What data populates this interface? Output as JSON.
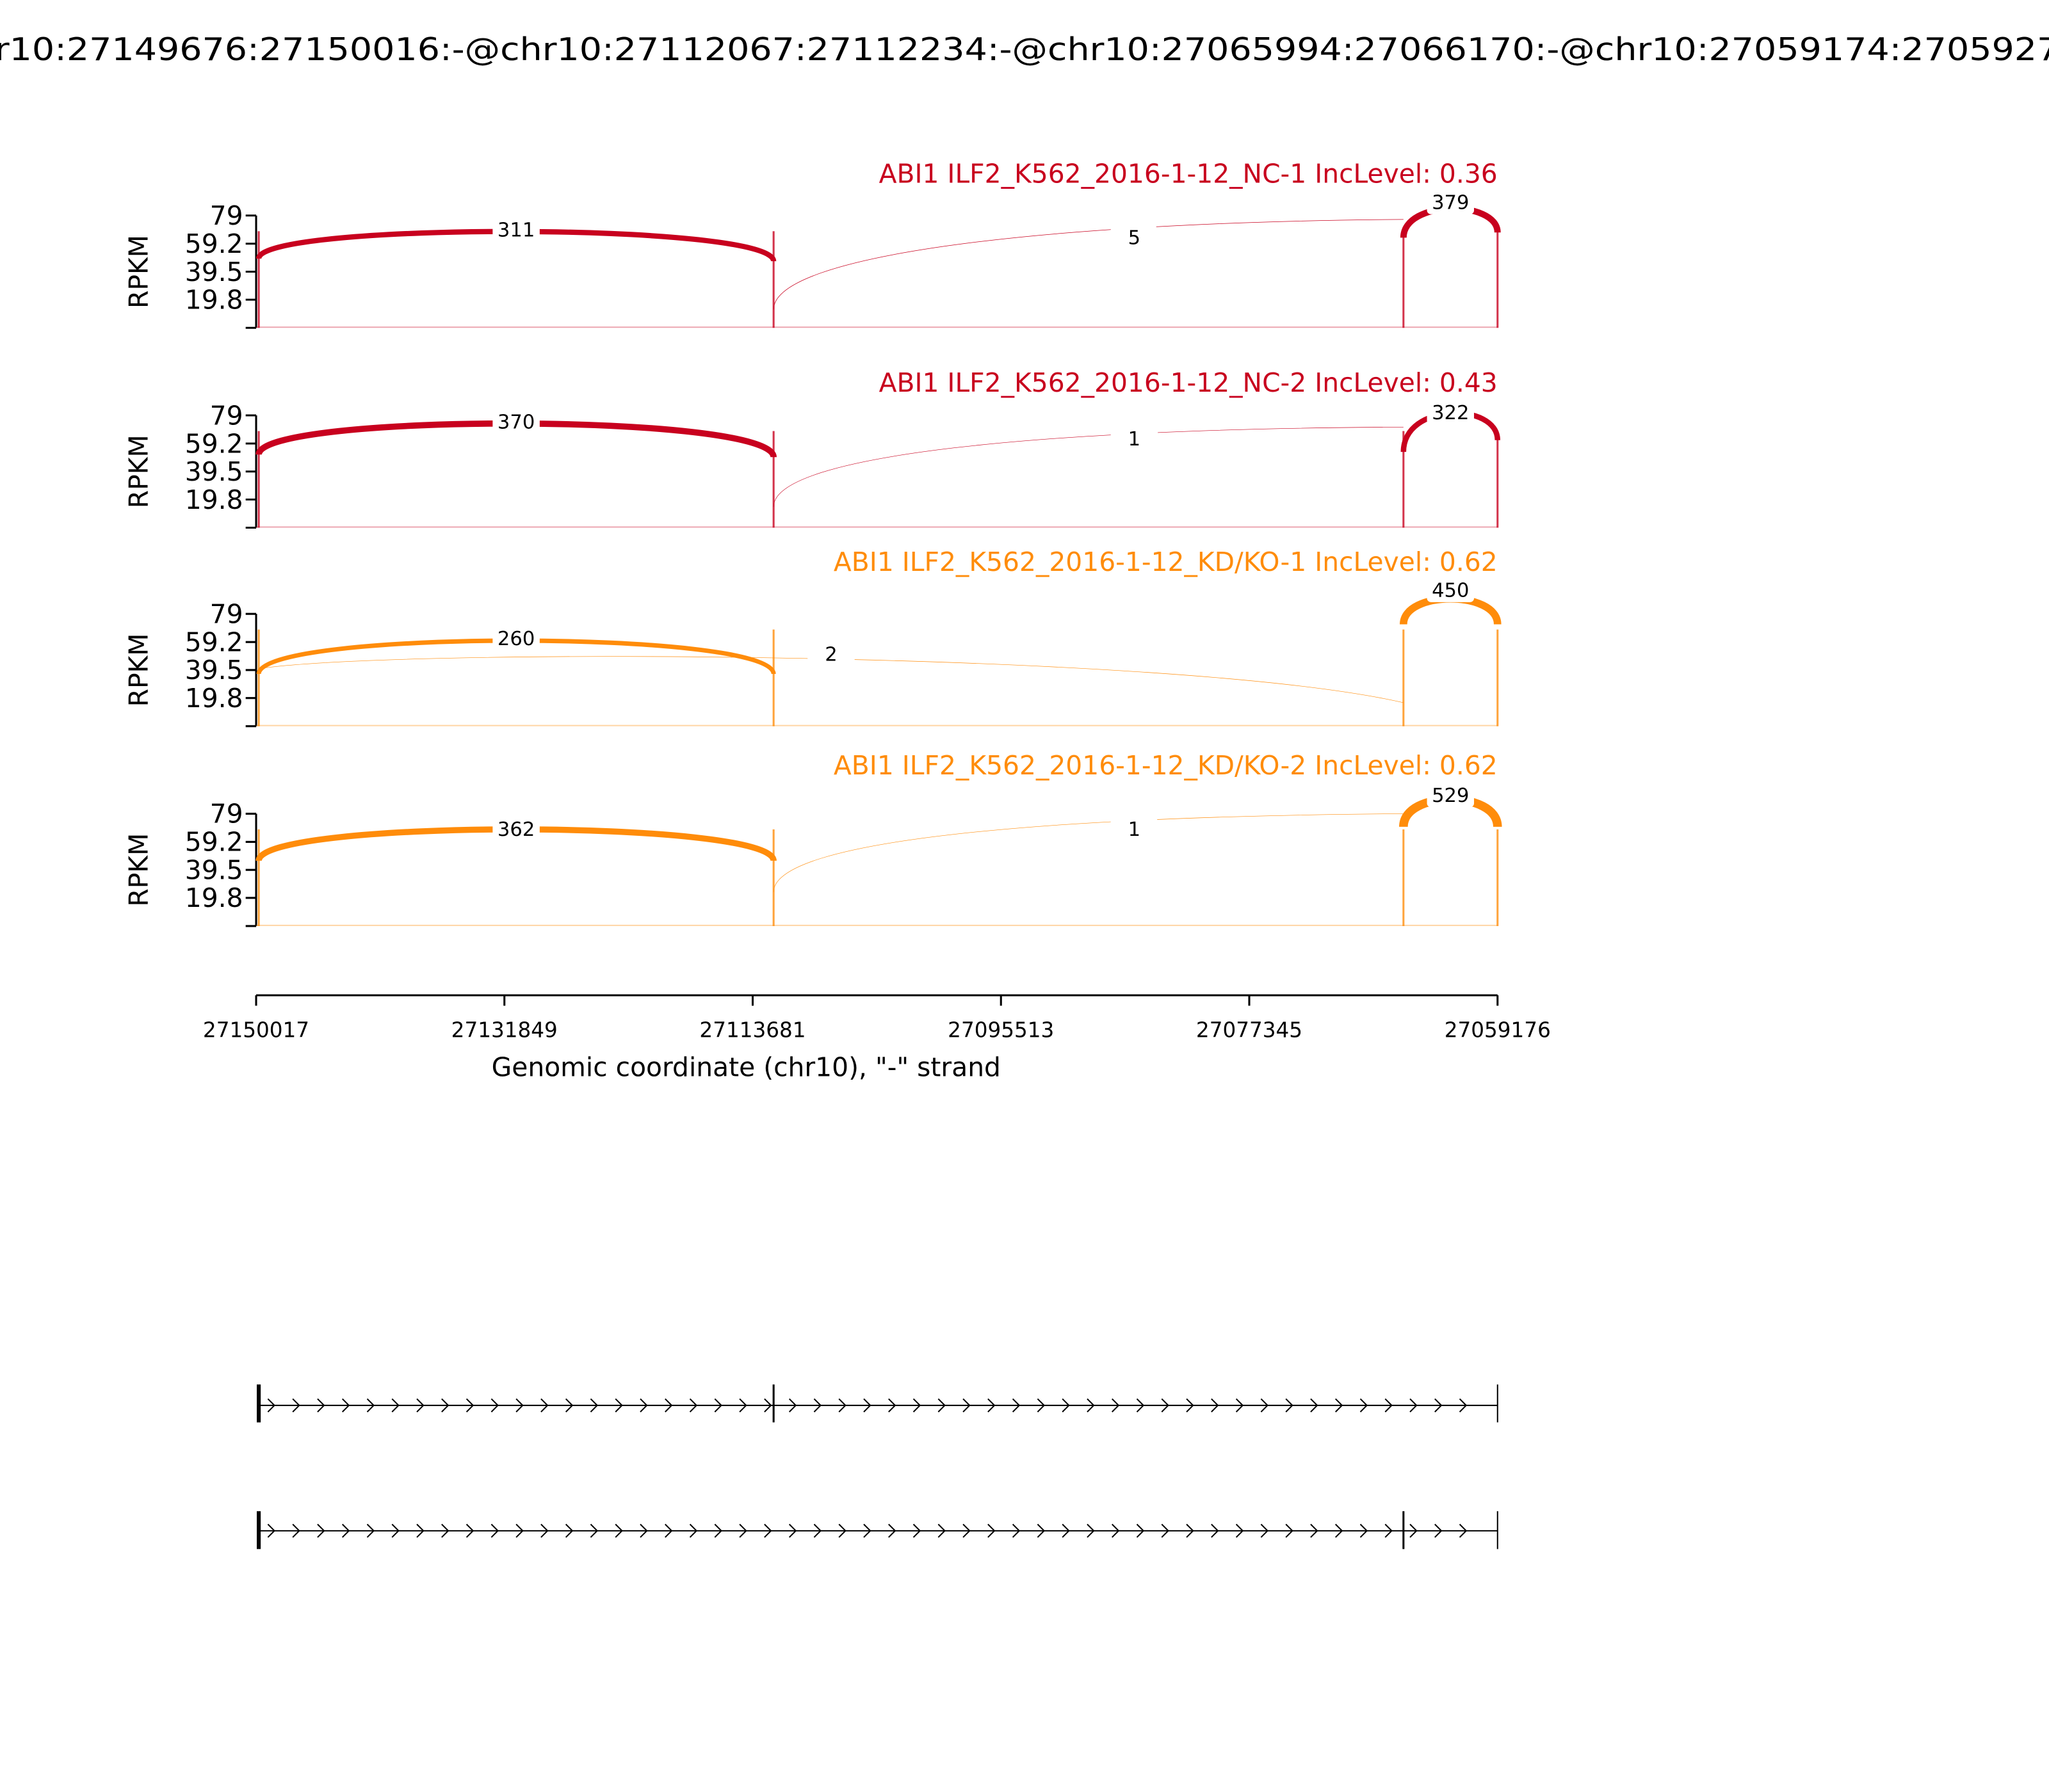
{
  "chart_data": {
    "type": "sashimi",
    "title": "r10:27149676:27150016:-@chr10:27112067:27112234:-@chr10:27065994:27066170:-@chr10:27059174:2705927",
    "ylabel": "RPKM",
    "ylim": [
      0,
      79
    ],
    "yticks": [
      19.8,
      39.5,
      59.2,
      79
    ],
    "xlabel": "Genomic coordinate (chr10), \"-\" strand",
    "xlim": [
      27150017,
      27059176
    ],
    "xticks": [
      27150017,
      27131849,
      27113681,
      27095513,
      27077345,
      27059176
    ],
    "panels": [
      {
        "label": "ABI1 ILF2_K562_2016-1-12_NC-1 IncLevel: 0.36",
        "color": "#c8001e",
        "junctions": [
          311,
          5,
          379
        ]
      },
      {
        "label": "ABI1 ILF2_K562_2016-1-12_NC-2 IncLevel: 0.43",
        "color": "#c8001e",
        "junctions": [
          370,
          1,
          322
        ]
      },
      {
        "label": "ABI1 ILF2_K562_2016-1-12_KD/KO-1 IncLevel: 0.62",
        "color": "#ff8c0a",
        "junctions": [
          260,
          2,
          450
        ]
      },
      {
        "label": "ABI1 ILF2_K562_2016-1-12_KD/KO-2 IncLevel: 0.62",
        "color": "#ff8c0a",
        "junctions": [
          362,
          1,
          529
        ]
      }
    ]
  }
}
